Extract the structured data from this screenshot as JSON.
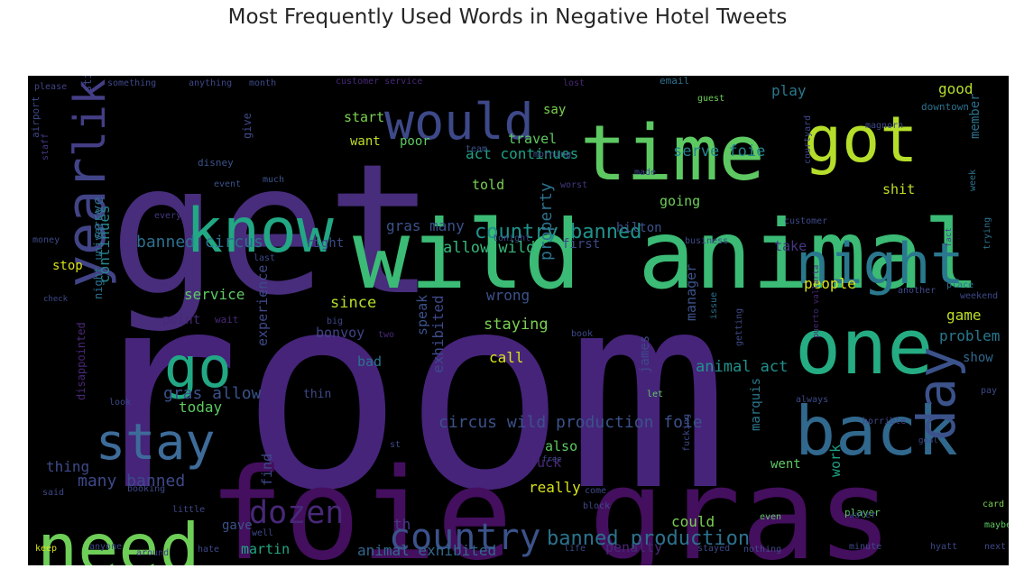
{
  "chart_data": {
    "type": "wordcloud",
    "title": "Most Frequently Used Words in Negative Hotel Tweets",
    "words": [
      {
        "text": "room",
        "color": "#46247a"
      },
      {
        "text": "get",
        "color": "#472d7b"
      },
      {
        "text": "wild animal",
        "color": "#3bbb75"
      },
      {
        "text": "foie gras",
        "color": "#440f5e"
      },
      {
        "text": "time",
        "color": "#5ec962"
      },
      {
        "text": "got",
        "color": "#b5de2b"
      },
      {
        "text": "would",
        "color": "#3e4989"
      },
      {
        "text": "like",
        "color": "#433e85"
      },
      {
        "text": "know",
        "color": "#22a884"
      },
      {
        "text": "night",
        "color": "#2a788e"
      },
      {
        "text": "one",
        "color": "#25ac82"
      },
      {
        "text": "year",
        "color": "#414487"
      },
      {
        "text": "go",
        "color": "#22a884"
      },
      {
        "text": "back",
        "color": "#31688e"
      },
      {
        "text": "day",
        "color": "#3b528b"
      },
      {
        "text": "stay",
        "color": "#3e6c9a"
      },
      {
        "text": "need",
        "color": "#6ece58"
      },
      {
        "text": "dozen",
        "color": "#482878"
      },
      {
        "text": "country",
        "color": "#3b528b"
      },
      {
        "text": "country banned",
        "color": "#20928c"
      },
      {
        "text": "banned production",
        "color": "#2c728e"
      },
      {
        "text": "act continues",
        "color": "#1fa187"
      },
      {
        "text": "serve foie",
        "color": "#25858e"
      },
      {
        "text": "gras many",
        "color": "#3b528b"
      },
      {
        "text": "allow wild",
        "color": "#35b779"
      },
      {
        "text": "banned circus",
        "color": "#2d708e"
      },
      {
        "text": "circus wild production foie",
        "color": "#3b528b"
      },
      {
        "text": "gras allow",
        "color": "#3b528b"
      },
      {
        "text": "many banned",
        "color": "#3e4989"
      },
      {
        "text": "animal act",
        "color": "#21918c"
      },
      {
        "text": "animal exhibited",
        "color": "#31688e"
      },
      {
        "text": "exhibited",
        "color": "#3e4989"
      },
      {
        "text": "speak",
        "color": "#3b528b"
      },
      {
        "text": "staying",
        "color": "#7ad151"
      },
      {
        "text": "property",
        "color": "#2c728e"
      },
      {
        "text": "continues",
        "color": "#25858e"
      },
      {
        "text": "serve",
        "color": "#31688e"
      },
      {
        "text": "experience",
        "color": "#3e4989"
      },
      {
        "text": "service",
        "color": "#5ec962"
      },
      {
        "text": "since",
        "color": "#b5de2b"
      },
      {
        "text": "wrong",
        "color": "#3b528b"
      },
      {
        "text": "bonvoy",
        "color": "#414487"
      },
      {
        "text": "bad",
        "color": "#2c728e"
      },
      {
        "text": "call",
        "color": "#d8e219"
      },
      {
        "text": "today",
        "color": "#5ec962"
      },
      {
        "text": "people",
        "color": "#d8e219"
      },
      {
        "text": "game",
        "color": "#bddf26"
      },
      {
        "text": "problem",
        "color": "#2a788e"
      },
      {
        "text": "manager",
        "color": "#3b528b"
      },
      {
        "text": "show",
        "color": "#31688e"
      },
      {
        "text": "james",
        "color": "#3e4989"
      },
      {
        "text": "penalty",
        "color": "#482878"
      },
      {
        "text": "could",
        "color": "#7ad151"
      },
      {
        "text": "martin",
        "color": "#22a884"
      },
      {
        "text": "also",
        "color": "#5ec962"
      },
      {
        "text": "really",
        "color": "#d8e219"
      },
      {
        "text": "fuck",
        "color": "#482878"
      },
      {
        "text": "went",
        "color": "#5ec962"
      },
      {
        "text": "work",
        "color": "#1fa187"
      },
      {
        "text": "marquis",
        "color": "#2a788e"
      },
      {
        "text": "find",
        "color": "#3e4989"
      },
      {
        "text": "thing",
        "color": "#3e4989"
      },
      {
        "text": "gave",
        "color": "#3b528b"
      },
      {
        "text": "th",
        "color": "#443983"
      },
      {
        "text": "thin",
        "color": "#3e4989"
      },
      {
        "text": "play",
        "color": "#2a788e"
      },
      {
        "text": "good",
        "color": "#b5de2b"
      },
      {
        "text": "member",
        "color": "#2c728e"
      },
      {
        "text": "shit",
        "color": "#bddf26"
      },
      {
        "text": "take",
        "color": "#443983"
      },
      {
        "text": "first",
        "color": "#3e4989"
      },
      {
        "text": "going",
        "color": "#6ece58"
      },
      {
        "text": "hilton",
        "color": "#3b528b"
      },
      {
        "text": "told",
        "color": "#7ad151"
      },
      {
        "text": "travel",
        "color": "#5ec962"
      },
      {
        "text": "poor",
        "color": "#5ec962"
      },
      {
        "text": "want",
        "color": "#bddf26"
      },
      {
        "text": "start",
        "color": "#7ad151"
      },
      {
        "text": "say",
        "color": "#7ad151"
      },
      {
        "text": "stop",
        "color": "#d8e219"
      },
      {
        "text": "right",
        "color": "#3e4989"
      },
      {
        "text": "still",
        "color": "#3e4989"
      },
      {
        "text": "give",
        "color": "#3e4989"
      },
      {
        "text": "point",
        "color": "#482878"
      },
      {
        "text": "wait",
        "color": "#482878"
      },
      {
        "text": "night universe",
        "color": "#2c728e"
      },
      {
        "text": "disappointed",
        "color": "#482878"
      },
      {
        "text": "look",
        "color": "#3e4989"
      },
      {
        "text": "disney",
        "color": "#3b528b"
      },
      {
        "text": "staff",
        "color": "#443983"
      },
      {
        "text": "airport",
        "color": "#3e4989"
      },
      {
        "text": "please",
        "color": "#414487"
      },
      {
        "text": "something",
        "color": "#3e4989"
      },
      {
        "text": "anything",
        "color": "#3e4989"
      },
      {
        "text": "month",
        "color": "#3e4989"
      },
      {
        "text": "customer service",
        "color": "#482878"
      },
      {
        "text": "lost",
        "color": "#482878"
      },
      {
        "text": "email",
        "color": "#2c728e"
      },
      {
        "text": "guest",
        "color": "#6ece58"
      },
      {
        "text": "downtown",
        "color": "#2c728e"
      },
      {
        "text": "magnorn",
        "color": "#3e4989"
      },
      {
        "text": "morning",
        "color": "#3b528b"
      },
      {
        "text": "team",
        "color": "#3b528b"
      },
      {
        "text": "made",
        "color": "#3e4989"
      },
      {
        "text": "worst",
        "color": "#443983"
      },
      {
        "text": "courtyard",
        "color": "#3e4989"
      },
      {
        "text": "week",
        "color": "#2c728e"
      },
      {
        "text": "trying",
        "color": "#2c728e"
      },
      {
        "text": "fact",
        "color": "#3e4989"
      },
      {
        "text": "customer",
        "color": "#3e4989"
      },
      {
        "text": "business",
        "color": "#3e4989"
      },
      {
        "text": "tonight",
        "color": "#3e4989"
      },
      {
        "text": "last",
        "color": "#3e4989"
      },
      {
        "text": "every",
        "color": "#443983"
      },
      {
        "text": "money",
        "color": "#3e4989"
      },
      {
        "text": "event",
        "color": "#3b528b"
      },
      {
        "text": "much",
        "color": "#3b528b"
      },
      {
        "text": "place",
        "color": "#2c728e"
      },
      {
        "text": "another",
        "color": "#3e4989"
      },
      {
        "text": "weekend",
        "color": "#3e4989"
      },
      {
        "text": "check",
        "color": "#3e4989"
      },
      {
        "text": "puerto vallarta",
        "color": "#482878"
      },
      {
        "text": "issue",
        "color": "#2c728e"
      },
      {
        "text": "book",
        "color": "#3e4989"
      },
      {
        "text": "two",
        "color": "#482878"
      },
      {
        "text": "big",
        "color": "#3e4989"
      },
      {
        "text": "getting",
        "color": "#3e4989"
      },
      {
        "text": "let",
        "color": "#5ec962"
      },
      {
        "text": "always",
        "color": "#3e4989"
      },
      {
        "text": "horrible",
        "color": "#3e4989"
      },
      {
        "text": "goal",
        "color": "#3e4989"
      },
      {
        "text": "player",
        "color": "#5ec962"
      },
      {
        "text": "water",
        "color": "#3e4989"
      },
      {
        "text": "card",
        "color": "#7ad151"
      },
      {
        "text": "maybe",
        "color": "#5ec962"
      },
      {
        "text": "next",
        "color": "#3e4989"
      },
      {
        "text": "hyatt",
        "color": "#3e4989"
      },
      {
        "text": "minute",
        "color": "#3e4989"
      },
      {
        "text": "nothing",
        "color": "#3e4989"
      },
      {
        "text": "stayed",
        "color": "#3e4989"
      },
      {
        "text": "life",
        "color": "#3e4989"
      },
      {
        "text": "block",
        "color": "#3e4989"
      },
      {
        "text": "come",
        "color": "#3e4989"
      },
      {
        "text": "even",
        "color": "#5ec962"
      },
      {
        "text": "fucking",
        "color": "#3e4989"
      },
      {
        "text": "little",
        "color": "#3e4989"
      },
      {
        "text": "booking",
        "color": "#3e4989"
      },
      {
        "text": "said",
        "color": "#3e4989"
      },
      {
        "text": "keep",
        "color": "#d8e219"
      },
      {
        "text": "anyone",
        "color": "#3e4989"
      },
      {
        "text": "around",
        "color": "#443983"
      },
      {
        "text": "hate",
        "color": "#3e4989"
      },
      {
        "text": "well",
        "color": "#3e4989"
      },
      {
        "text": "free",
        "color": "#3e4989"
      },
      {
        "text": "pay",
        "color": "#3e4989"
      },
      {
        "text": "st",
        "color": "#3e4989"
      }
    ]
  }
}
